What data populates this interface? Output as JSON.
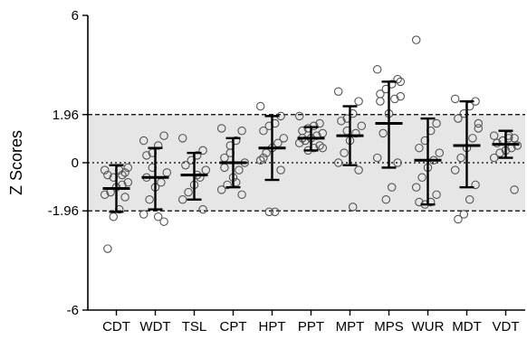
{
  "chart_data": {
    "type": "scatter",
    "title": "",
    "ylabel": "Z Scores",
    "xlabel": "",
    "ylim": [
      -6,
      6
    ],
    "yticks": [
      {
        "value": 6,
        "label": "6"
      },
      {
        "value": 1.96,
        "label": "1.96"
      },
      {
        "value": 0,
        "label": "0"
      },
      {
        "value": -1.96,
        "label": "-1.96"
      },
      {
        "value": -6,
        "label": "-6"
      }
    ],
    "reference_band": {
      "low": -1.96,
      "high": 1.96,
      "color": "#e6e6e6"
    },
    "reference_lines": [
      {
        "value": 1.96,
        "style": "dashed"
      },
      {
        "value": -1.96,
        "style": "dashed"
      },
      {
        "value": 0,
        "style": "dotted"
      }
    ],
    "grid": false,
    "legend": "none",
    "colors": {
      "points_stroke": "#555555",
      "summary": "#000000",
      "band": "#e6e6e6"
    },
    "categories": [
      "CDT",
      "WDT",
      "TSL",
      "CPT",
      "HPT",
      "PPT",
      "MPT",
      "MPS",
      "WUR",
      "MDT",
      "VDT"
    ],
    "groups": [
      {
        "name": "CDT",
        "mean": -1.05,
        "sd_low": -2.0,
        "sd_high": -0.1,
        "points": [
          -0.3,
          -0.4,
          -0.3,
          -0.6,
          -0.5,
          -0.8,
          -0.9,
          -1.0,
          -1.2,
          -1.3,
          -1.4,
          -1.9,
          -2.2,
          -3.5,
          -0.2,
          -0.5
        ]
      },
      {
        "name": "WDT",
        "mean": -0.6,
        "sd_low": -1.9,
        "sd_high": 0.6,
        "points": [
          0.9,
          1.1,
          0.7,
          0.4,
          0.3,
          -0.4,
          -0.8,
          -1.0,
          -1.5,
          -2.1,
          -2.4,
          -2.2,
          -0.2,
          -0.6
        ]
      },
      {
        "name": "TSL",
        "mean": -0.5,
        "sd_low": -1.5,
        "sd_high": 0.4,
        "points": [
          1.0,
          0.5,
          0.3,
          0.1,
          -0.1,
          -0.3,
          -0.6,
          -0.9,
          -1.2,
          -1.5,
          -1.9,
          -0.5
        ]
      },
      {
        "name": "CPT",
        "mean": 0.0,
        "sd_low": -1.0,
        "sd_high": 1.0,
        "points": [
          1.4,
          1.3,
          0.9,
          0.7,
          0.2,
          0.0,
          -0.3,
          -0.6,
          -0.9,
          -1.1,
          -1.3,
          -0.8,
          0.4,
          -0.2
        ]
      },
      {
        "name": "HPT",
        "mean": 0.6,
        "sd_low": -0.7,
        "sd_high": 1.9,
        "points": [
          2.3,
          1.9,
          1.6,
          1.5,
          1.3,
          1.0,
          0.8,
          0.6,
          0.4,
          0.1,
          -0.3,
          -2.0,
          -2.0,
          0.2
        ]
      },
      {
        "name": "PPT",
        "mean": 1.0,
        "sd_low": 0.5,
        "sd_high": 1.45,
        "points": [
          1.9,
          1.6,
          1.5,
          1.4,
          1.3,
          1.2,
          1.1,
          1.0,
          0.9,
          0.8,
          0.7,
          0.6,
          0.5,
          1.0,
          0.6
        ]
      },
      {
        "name": "MPT",
        "mean": 1.1,
        "sd_low": -0.1,
        "sd_high": 2.3,
        "points": [
          2.9,
          2.5,
          2.0,
          1.8,
          1.7,
          1.5,
          1.2,
          0.9,
          0.4,
          0.0,
          -0.3,
          -1.8,
          1.3
        ]
      },
      {
        "name": "MPS",
        "mean": 1.6,
        "sd_low": -0.2,
        "sd_high": 3.3,
        "points": [
          3.8,
          3.4,
          3.2,
          3.0,
          2.8,
          2.7,
          2.6,
          2.0,
          1.2,
          0.2,
          0.0,
          -1.0,
          -1.5,
          2.5,
          3.3
        ]
      },
      {
        "name": "WUR",
        "mean": 0.1,
        "sd_low": -1.7,
        "sd_high": 1.8,
        "points": [
          5.0,
          1.6,
          1.3,
          0.9,
          0.6,
          0.4,
          0.1,
          -0.2,
          -0.6,
          -1.0,
          -1.3,
          -1.6,
          -1.7,
          -1.6
        ]
      },
      {
        "name": "MDT",
        "mean": 0.7,
        "sd_low": -1.0,
        "sd_high": 2.5,
        "points": [
          2.6,
          2.5,
          2.3,
          2.0,
          1.8,
          1.4,
          1.0,
          0.6,
          0.2,
          -0.3,
          -0.9,
          -1.5,
          -2.1,
          -2.3,
          1.6
        ]
      },
      {
        "name": "VDT",
        "mean": 0.75,
        "sd_low": 0.2,
        "sd_high": 1.3,
        "points": [
          1.1,
          1.0,
          1.0,
          0.9,
          0.8,
          0.7,
          0.6,
          0.5,
          0.4,
          0.2,
          -1.1,
          1.1,
          0.9
        ]
      }
    ]
  }
}
